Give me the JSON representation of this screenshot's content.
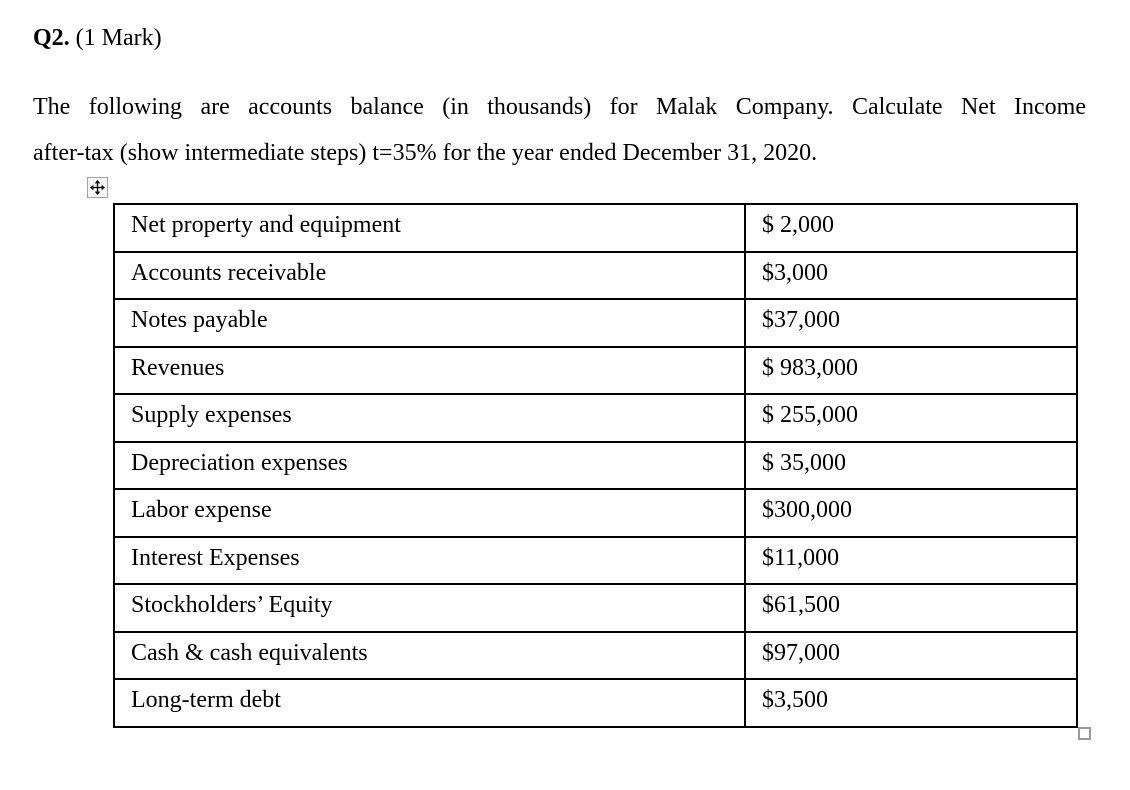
{
  "page": {
    "background_color": "#ffffff",
    "text_color": "#000000",
    "table_border_color": "#000000",
    "handle_border_color": "#9a9a9a"
  },
  "heading": {
    "number": "Q2.",
    "marks": "(1 Mark)"
  },
  "question": {
    "line1": "The following are accounts balance (in thousands) for Malak Company. Calculate Net Income",
    "line2": "after-tax (show intermediate steps) t=35% for the year ended December 31, 2020."
  },
  "icons": {
    "move_handle": "table-move-cross-icon",
    "resize_handle": "table-resize-square-icon"
  },
  "table": {
    "rows": [
      {
        "label": "Net property and equipment",
        "value": "$ 2,000"
      },
      {
        "label": "Accounts receivable",
        "value": "$3,000"
      },
      {
        "label": "Notes payable",
        "value": "$37,000"
      },
      {
        "label": "Revenues",
        "value": "$ 983,000"
      },
      {
        "label": "Supply expenses",
        "value": "$ 255,000"
      },
      {
        "label": "Depreciation expenses",
        "value": "$ 35,000"
      },
      {
        "label": "Labor expense",
        "value": "$300,000"
      },
      {
        "label": "Interest Expenses",
        "value": "$11,000"
      },
      {
        "label": "Stockholders’ Equity",
        "value": "$61,500"
      },
      {
        "label": "Cash & cash equivalents",
        "value": "$97,000"
      },
      {
        "label": "Long-term debt",
        "value": "$3,500"
      }
    ]
  }
}
